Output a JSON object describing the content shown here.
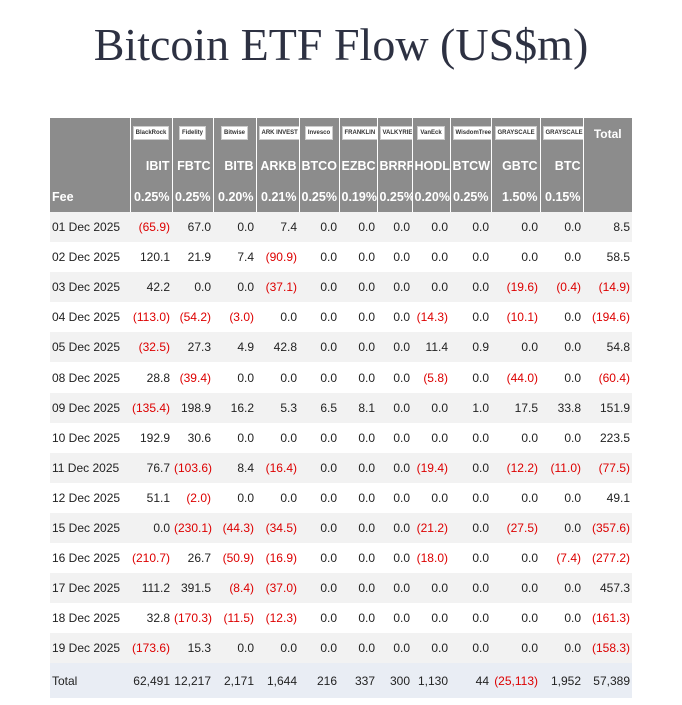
{
  "title": "Bitcoin ETF Flow (US$m)",
  "table": {
    "logos": [
      "BlackRock",
      "Fidelity",
      "Bitwise",
      "ARK INVEST",
      "Invesco",
      "FRANKLIN TEMPLETON",
      "VALKYRIE",
      "VanEck",
      "WisdomTree",
      "GRAYSCALE",
      "GRAYSCALE"
    ],
    "total_header": "Total",
    "tickers": [
      "IBIT",
      "FBTC",
      "BITB",
      "ARKB",
      "BTCO",
      "EZBC",
      "BRRR",
      "HODL",
      "BTCW",
      "GBTC",
      "BTC"
    ],
    "fee_label": "Fee",
    "fees": [
      "0.25%",
      "0.25%",
      "0.20%",
      "0.21%",
      "0.25%",
      "0.19%",
      "0.25%",
      "0.20%",
      "0.25%",
      "1.50%",
      "0.15%"
    ],
    "rows": [
      [
        "01 Dec 2025",
        "(65.9)",
        "67.0",
        "0.0",
        "7.4",
        "0.0",
        "0.0",
        "0.0",
        "0.0",
        "0.0",
        "0.0",
        "0.0",
        "8.5"
      ],
      [
        "02 Dec 2025",
        "120.1",
        "21.9",
        "7.4",
        "(90.9)",
        "0.0",
        "0.0",
        "0.0",
        "0.0",
        "0.0",
        "0.0",
        "0.0",
        "58.5"
      ],
      [
        "03 Dec 2025",
        "42.2",
        "0.0",
        "0.0",
        "(37.1)",
        "0.0",
        "0.0",
        "0.0",
        "0.0",
        "0.0",
        "(19.6)",
        "(0.4)",
        "(14.9)"
      ],
      [
        "04 Dec 2025",
        "(113.0)",
        "(54.2)",
        "(3.0)",
        "0.0",
        "0.0",
        "0.0",
        "0.0",
        "(14.3)",
        "0.0",
        "(10.1)",
        "0.0",
        "(194.6)"
      ],
      [
        "05 Dec 2025",
        "(32.5)",
        "27.3",
        "4.9",
        "42.8",
        "0.0",
        "0.0",
        "0.0",
        "11.4",
        "0.9",
        "0.0",
        "0.0",
        "54.8"
      ],
      [
        "08 Dec 2025",
        "28.8",
        "(39.4)",
        "0.0",
        "0.0",
        "0.0",
        "0.0",
        "0.0",
        "(5.8)",
        "0.0",
        "(44.0)",
        "0.0",
        "(60.4)"
      ],
      [
        "09 Dec 2025",
        "(135.4)",
        "198.9",
        "16.2",
        "5.3",
        "6.5",
        "8.1",
        "0.0",
        "0.0",
        "1.0",
        "17.5",
        "33.8",
        "151.9"
      ],
      [
        "10 Dec 2025",
        "192.9",
        "30.6",
        "0.0",
        "0.0",
        "0.0",
        "0.0",
        "0.0",
        "0.0",
        "0.0",
        "0.0",
        "0.0",
        "223.5"
      ],
      [
        "11 Dec 2025",
        "76.7",
        "(103.6)",
        "8.4",
        "(16.4)",
        "0.0",
        "0.0",
        "0.0",
        "(19.4)",
        "0.0",
        "(12.2)",
        "(11.0)",
        "(77.5)"
      ],
      [
        "12 Dec 2025",
        "51.1",
        "(2.0)",
        "0.0",
        "0.0",
        "0.0",
        "0.0",
        "0.0",
        "0.0",
        "0.0",
        "0.0",
        "0.0",
        "49.1"
      ],
      [
        "15 Dec 2025",
        "0.0",
        "(230.1)",
        "(44.3)",
        "(34.5)",
        "0.0",
        "0.0",
        "0.0",
        "(21.2)",
        "0.0",
        "(27.5)",
        "0.0",
        "(357.6)"
      ],
      [
        "16 Dec 2025",
        "(210.7)",
        "26.7",
        "(50.9)",
        "(16.9)",
        "0.0",
        "0.0",
        "0.0",
        "(18.0)",
        "0.0",
        "0.0",
        "(7.4)",
        "(277.2)"
      ],
      [
        "17 Dec 2025",
        "111.2",
        "391.5",
        "(8.4)",
        "(37.0)",
        "0.0",
        "0.0",
        "0.0",
        "0.0",
        "0.0",
        "0.0",
        "0.0",
        "457.3"
      ],
      [
        "18 Dec 2025",
        "32.8",
        "(170.3)",
        "(11.5)",
        "(12.3)",
        "0.0",
        "0.0",
        "0.0",
        "0.0",
        "0.0",
        "0.0",
        "0.0",
        "(161.3)"
      ],
      [
        "19 Dec 2025",
        "(173.6)",
        "15.3",
        "0.0",
        "0.0",
        "0.0",
        "0.0",
        "0.0",
        "0.0",
        "0.0",
        "0.0",
        "0.0",
        "(158.3)"
      ]
    ],
    "total_row": [
      "Total",
      "62,491",
      "12,217",
      "2,171",
      "1,644",
      "216",
      "337",
      "300",
      "1,130",
      "44",
      "(25,113)",
      "1,952",
      "57,389"
    ]
  }
}
